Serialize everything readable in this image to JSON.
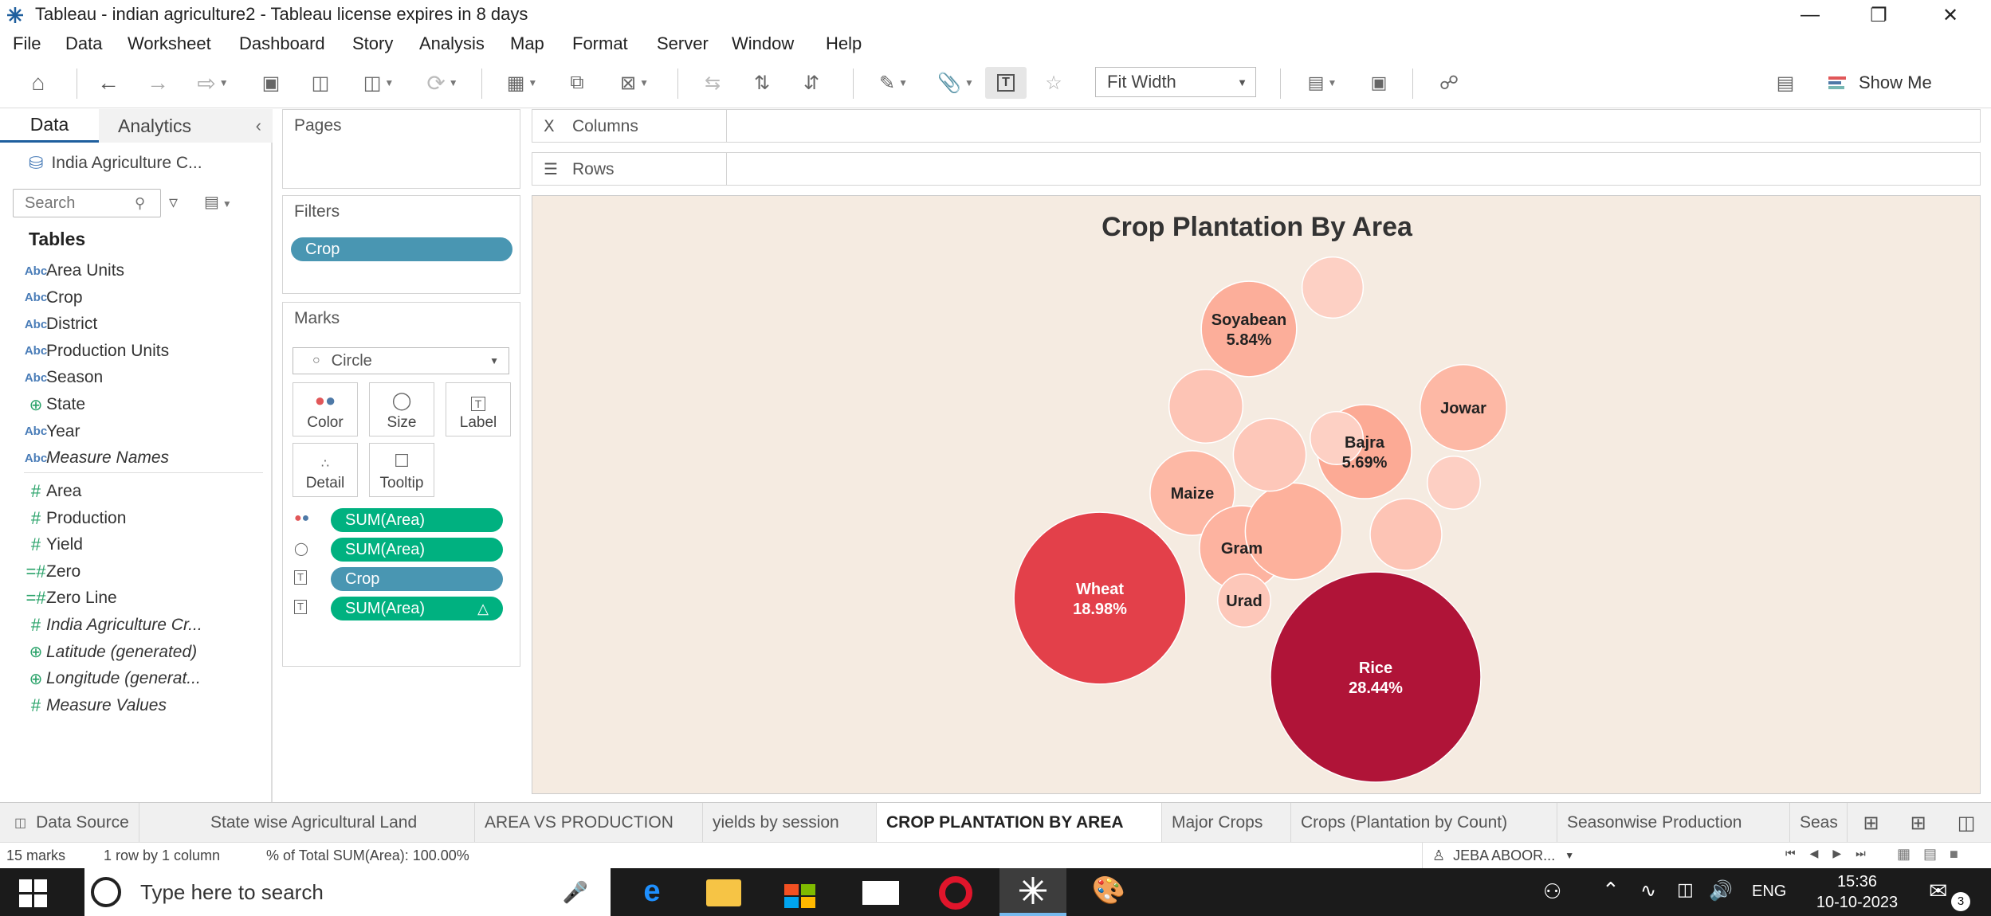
{
  "window": {
    "title": "Tableau - indian agriculture2 - Tableau license expires in 8 days"
  },
  "menu": [
    "File",
    "Data",
    "Worksheet",
    "Dashboard",
    "Story",
    "Analysis",
    "Map",
    "Format",
    "Server",
    "Window",
    "Help"
  ],
  "toolbar": {
    "fit_label": "Fit Width",
    "show_me": "Show Me"
  },
  "left_panel": {
    "tabs": [
      "Data",
      "Analytics"
    ],
    "datasource": "India Agriculture C...",
    "search_placeholder": "Search",
    "tables_heading": "Tables",
    "dimensions": [
      {
        "type": "Abc",
        "name": "Area Units"
      },
      {
        "type": "Abc",
        "name": "Crop"
      },
      {
        "type": "Abc",
        "name": "District"
      },
      {
        "type": "Abc",
        "name": "Production Units"
      },
      {
        "type": "Abc",
        "name": "Season"
      },
      {
        "type": "geo",
        "name": "State"
      },
      {
        "type": "Abc",
        "name": "Year"
      },
      {
        "type": "Abc",
        "name": "Measure Names",
        "italic": true
      }
    ],
    "measures": [
      {
        "type": "#",
        "name": "Area"
      },
      {
        "type": "#",
        "name": "Production"
      },
      {
        "type": "#",
        "name": "Yield"
      },
      {
        "type": "=#",
        "name": "Zero"
      },
      {
        "type": "=#",
        "name": "Zero Line"
      },
      {
        "type": "#",
        "name": "India Agriculture Cr...",
        "italic": true
      },
      {
        "type": "geo",
        "name": "Latitude (generated)",
        "italic": true
      },
      {
        "type": "geo",
        "name": "Longitude (generat...",
        "italic": true
      },
      {
        "type": "#",
        "name": "Measure Values",
        "italic": true
      }
    ]
  },
  "shelves": {
    "pages": "Pages",
    "filters": "Filters",
    "filter_pill": "Crop",
    "marks": "Marks",
    "mark_type": "Circle",
    "mark_buttons": [
      "Color",
      "Size",
      "Label",
      "Detail",
      "Tooltip"
    ],
    "mark_pills": [
      {
        "icon": "color",
        "label": "SUM(Area)",
        "color": "green"
      },
      {
        "icon": "size",
        "label": "SUM(Area)",
        "color": "green"
      },
      {
        "icon": "label",
        "label": "Crop",
        "color": "blue"
      },
      {
        "icon": "label",
        "label": "SUM(Area)",
        "color": "green",
        "delta": "△"
      }
    ],
    "columns": "Columns",
    "rows": "Rows"
  },
  "chart_data": {
    "type": "bubble",
    "title": "Crop Plantation By Area",
    "bubbles": [
      {
        "label": "Rice",
        "value": "28.44%",
        "share": 28.44,
        "color": "#b01438"
      },
      {
        "label": "Wheat",
        "value": "18.98%",
        "share": 18.98,
        "color": "#e3404a"
      },
      {
        "label": "Soyabean",
        "value": "5.84%",
        "share": 5.84,
        "color": "#fcae9a"
      },
      {
        "label": "Bajra",
        "value": "5.69%",
        "share": 5.69,
        "color": "#fcaa95"
      },
      {
        "label": "Jowar",
        "value": "",
        "share": 4.8,
        "color": "#fdb8a5"
      },
      {
        "label": "Maize",
        "value": "",
        "share": 4.6,
        "color": "#fdb8a5"
      },
      {
        "label": "Gram",
        "value": "",
        "share": 4.6,
        "color": "#fdb3a0"
      },
      {
        "label": "Urad",
        "value": "",
        "share": 1.8,
        "color": "#fdc7b9"
      },
      {
        "label": "",
        "value": "",
        "share": 6.0,
        "color": "#fdb19c"
      },
      {
        "label": "",
        "value": "",
        "share": 3.5,
        "color": "#fdc4b5"
      },
      {
        "label": "",
        "value": "",
        "share": 3.4,
        "color": "#fdc7b9"
      },
      {
        "label": "",
        "value": "",
        "share": 3.3,
        "color": "#fdc4b5"
      },
      {
        "label": "",
        "value": "",
        "share": 2.4,
        "color": "#fdd0c4"
      },
      {
        "label": "",
        "value": "",
        "share": 1.8,
        "color": "#fdcfc3"
      },
      {
        "label": "",
        "value": "",
        "share": 1.8,
        "color": "#fdd0c4"
      }
    ]
  },
  "sheet_tabs": {
    "data_source": "Data Source",
    "tabs": [
      "State wise Agricultural Land",
      "AREA VS PRODUCTION",
      "yields by session",
      "CROP PLANTATION BY AREA",
      "Major Crops",
      "Crops (Plantation by Count)",
      "Seasonwise Production",
      "Seas"
    ],
    "active": "CROP PLANTATION BY AREA"
  },
  "status": {
    "marks": "15 marks",
    "rowcol": "1 row by 1 column",
    "total": "% of Total SUM(Area): 100.00%",
    "user": "JEBA ABOOR..."
  },
  "taskbar": {
    "search_placeholder": "Type here to search",
    "lang": "ENG",
    "time": "15:36",
    "date": "10-10-2023",
    "notif": "3"
  }
}
